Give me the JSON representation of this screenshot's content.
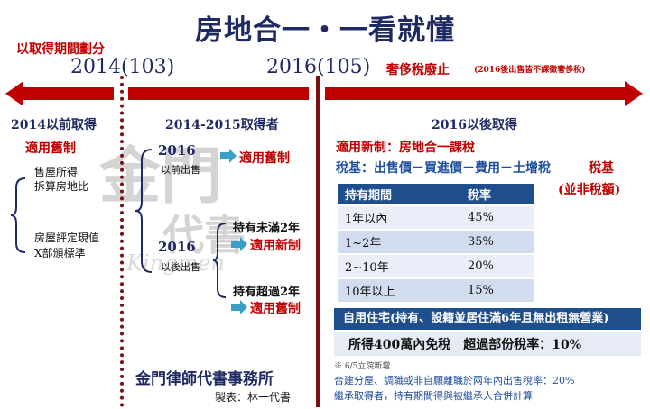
{
  "title": "房地合一・一看就懂",
  "subtitle_left": "以取得期間劃分",
  "year_2014": "2014(103)",
  "year_2016": "2016(105)",
  "luxury_tax": {
    "label": "奢侈稅廢止",
    "note": "(2016後出售皆不課徵奢侈稅)"
  },
  "col1": {
    "title": "2014以前取得",
    "rule": "適用舊制",
    "item1_l1": "售屋所得",
    "item1_l2": "拆算房地比",
    "item2_l1": "房屋評定現值",
    "item2_l2": "X部頒標準"
  },
  "col2": {
    "title": "2014-2015取得者",
    "branch1_year": "2016",
    "branch1_sub": "以前出售",
    "branch1_rule": "適用舊制",
    "branch2_year": "2016",
    "branch2_sub": "以後出售",
    "short_hold": "持有未滿2年",
    "short_rule": "適用新制",
    "long_hold": "持有超過2年",
    "long_rule": "適用舊制"
  },
  "col3": {
    "title": "2016以後取得",
    "rule_line": "適用新制：房地合一課稅",
    "basis_prefix": "稅基：出售價－買進價－費用－土增稅",
    "basis_suffix": "稅基",
    "not_amount": "(並非稅額)",
    "table": {
      "headers": [
        "持有期間",
        "稅率"
      ],
      "rows": [
        [
          "1年以內",
          "45%"
        ],
        [
          "1~2年",
          "35%"
        ],
        [
          "2~10年",
          "20%"
        ],
        [
          "10年以上",
          "15%"
        ]
      ]
    },
    "self_use_title": "自用住宅(持有、設籍並居住滿6年且無出租無營業)",
    "self_use_detail": "所得400萬內免稅　超過部份稅率：10%",
    "footnote": "※ 6/5立院新增",
    "extra_l1": "合建分屋、調職或非自願離職於兩年內出售稅率：20%",
    "extra_l2": "繼承取得者，持有期間得與被繼承人合併計算"
  },
  "firm": "金門律師代書事務所",
  "author": "製表：林一代書",
  "watermark": "金門",
  "watermark2": "代書",
  "watermark_script": "Kingmen"
}
